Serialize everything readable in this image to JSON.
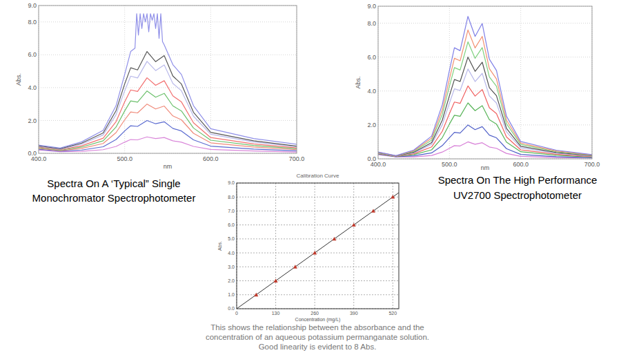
{
  "chart_data": [
    {
      "type": "line",
      "caption": [
        "Spectra On A ‘Typical” Single",
        "Monochromator Spectrophotometer"
      ],
      "x_label": "nm",
      "y_label": "Abs.",
      "xlim": [
        400,
        700
      ],
      "ylim": [
        0,
        9
      ],
      "xticks": [
        {
          "value": 400,
          "label": "400.0"
        },
        {
          "value": 500,
          "label": "500.0"
        },
        {
          "value": 600,
          "label": "600.0"
        },
        {
          "value": 700,
          "label": "700.0"
        }
      ],
      "yticks": [
        {
          "value": 0,
          "label": "0.0"
        },
        {
          "value": 2,
          "label": "2.0"
        },
        {
          "value": 4,
          "label": "4.0"
        },
        {
          "value": 6,
          "label": "6.0"
        },
        {
          "value": 8,
          "label": "8.0"
        },
        {
          "value": 9,
          "label": "9.0"
        }
      ],
      "grid": true,
      "line_style": "solid",
      "x": [
        400,
        425,
        450,
        475,
        490,
        500,
        507,
        515,
        526,
        536,
        546,
        556,
        566,
        580,
        600,
        650,
        700
      ],
      "series": [
        {
          "color": "#d986d9",
          "values": [
            0.2,
            0.1,
            0.12,
            0.22,
            0.42,
            0.68,
            0.84,
            0.82,
            1.0,
            0.9,
            0.96,
            0.76,
            0.68,
            0.42,
            0.24,
            0.14,
            0.08
          ]
        },
        {
          "color": "#5b6bd0",
          "values": [
            0.25,
            0.13,
            0.2,
            0.4,
            0.84,
            1.36,
            1.68,
            1.64,
            2.0,
            1.8,
            1.92,
            1.52,
            1.36,
            0.82,
            0.44,
            0.26,
            0.15
          ]
        },
        {
          "color": "#f08a7a",
          "values": [
            0.3,
            0.16,
            0.3,
            0.6,
            1.26,
            2.04,
            2.52,
            2.46,
            3.0,
            2.7,
            2.88,
            2.28,
            2.04,
            1.22,
            0.64,
            0.38,
            0.22
          ]
        },
        {
          "color": "#6cc06c",
          "values": [
            0.34,
            0.19,
            0.38,
            0.76,
            1.6,
            2.58,
            3.19,
            3.12,
            3.8,
            3.42,
            3.65,
            2.89,
            2.58,
            1.54,
            0.8,
            0.48,
            0.28
          ]
        },
        {
          "color": "#f27070",
          "values": [
            0.38,
            0.22,
            0.46,
            0.92,
            1.93,
            3.13,
            3.86,
            3.77,
            4.6,
            4.14,
            4.42,
            3.5,
            3.13,
            1.86,
            0.96,
            0.57,
            0.33
          ]
        },
        {
          "color": "#b9b9ea",
          "values": [
            0.42,
            0.25,
            0.56,
            1.12,
            2.35,
            3.81,
            4.7,
            4.59,
            5.6,
            5.04,
            5.38,
            4.26,
            3.81,
            2.26,
            1.16,
            0.69,
            0.4
          ]
        },
        {
          "color": "#555555",
          "values": [
            0.46,
            0.28,
            0.62,
            1.24,
            2.6,
            4.22,
            5.21,
            5.08,
            6.2,
            5.58,
            5.95,
            4.71,
            4.22,
            2.5,
            1.28,
            0.76,
            0.44
          ]
        },
        {
          "color": "#8f8fe8",
          "x": [
            400,
            425,
            450,
            475,
            490,
            500,
            507,
            512,
            514,
            516,
            518,
            520,
            522,
            524,
            526,
            528,
            530,
            532,
            534,
            536,
            538,
            540,
            542,
            544,
            546,
            556,
            566,
            580,
            600,
            650,
            700
          ],
          "values": [
            0.5,
            0.32,
            0.7,
            1.4,
            2.9,
            4.8,
            6.2,
            6.4,
            8.5,
            7.2,
            8.5,
            7.6,
            8.5,
            8.0,
            8.5,
            7.4,
            8.5,
            8.1,
            8.5,
            7.6,
            8.5,
            7.0,
            8.5,
            6.8,
            6.6,
            5.4,
            4.8,
            2.9,
            1.5,
            0.9,
            0.55
          ]
        }
      ]
    },
    {
      "type": "line",
      "caption": [
        "Spectra On The High Performance",
        "UV2700 Spectrophotometer"
      ],
      "x_label": "nm",
      "y_label": "Abs.",
      "xlim": [
        400,
        700
      ],
      "ylim": [
        0,
        9
      ],
      "xticks": [
        {
          "value": 400,
          "label": "400.0"
        },
        {
          "value": 500,
          "label": "500.0"
        },
        {
          "value": 600,
          "label": "600.0"
        },
        {
          "value": 700,
          "label": "700.0"
        }
      ],
      "yticks": [
        {
          "value": 0,
          "label": "0.0"
        },
        {
          "value": 2,
          "label": "2.0"
        },
        {
          "value": 4,
          "label": "4.0"
        },
        {
          "value": 6,
          "label": "6.0"
        },
        {
          "value": 8,
          "label": "8.0"
        },
        {
          "value": 9,
          "label": "9.0"
        }
      ],
      "grid": true,
      "line_style": "solid",
      "x": [
        400,
        425,
        450,
        475,
        490,
        500,
        507,
        515,
        526,
        536,
        546,
        556,
        566,
        580,
        600,
        650,
        700
      ],
      "series": [
        {
          "color": "#d77fd7",
          "values": [
            0.25,
            0.12,
            0.12,
            0.2,
            0.4,
            0.62,
            0.78,
            0.76,
            1.0,
            0.86,
            0.95,
            0.7,
            0.62,
            0.32,
            0.15,
            0.08,
            0.05
          ]
        },
        {
          "color": "#4f5fc8",
          "values": [
            0.28,
            0.13,
            0.18,
            0.35,
            0.78,
            1.25,
            1.56,
            1.52,
            2.0,
            1.72,
            1.9,
            1.4,
            1.24,
            0.6,
            0.26,
            0.13,
            0.07
          ]
        },
        {
          "color": "#58b458",
          "values": [
            0.3,
            0.14,
            0.25,
            0.53,
            1.25,
            2.05,
            2.57,
            2.51,
            3.3,
            2.84,
            3.14,
            2.31,
            2.05,
            0.99,
            0.42,
            0.21,
            0.11
          ]
        },
        {
          "color": "#f06060",
          "values": [
            0.32,
            0.15,
            0.3,
            0.7,
            1.63,
            2.67,
            3.35,
            3.27,
            4.3,
            3.7,
            4.09,
            3.01,
            2.67,
            1.29,
            0.53,
            0.27,
            0.13
          ]
        },
        {
          "color": "#b7b7ea",
          "values": [
            0.34,
            0.16,
            0.35,
            0.86,
            2.01,
            3.29,
            4.13,
            4.03,
            5.3,
            4.56,
            5.04,
            3.71,
            3.29,
            1.59,
            0.65,
            0.33,
            0.16
          ]
        },
        {
          "color": "#505050",
          "values": [
            0.36,
            0.17,
            0.39,
            0.96,
            2.28,
            3.72,
            4.68,
            4.56,
            6.0,
            5.16,
            5.7,
            4.2,
            3.72,
            1.8,
            0.74,
            0.37,
            0.19
          ]
        },
        {
          "color": "#7ed07e",
          "values": [
            0.37,
            0.18,
            0.44,
            1.1,
            2.62,
            4.28,
            5.38,
            5.24,
            6.9,
            5.93,
            6.56,
            4.83,
            4.28,
            2.07,
            0.85,
            0.42,
            0.21
          ]
        },
        {
          "color": "#f29070",
          "values": [
            0.39,
            0.18,
            0.48,
            1.22,
            2.89,
            4.71,
            5.93,
            5.78,
            7.6,
            6.54,
            7.22,
            5.32,
            4.71,
            2.28,
            0.93,
            0.46,
            0.23
          ]
        },
        {
          "color": "#7f7fe6",
          "values": [
            0.4,
            0.19,
            0.52,
            1.34,
            3.19,
            5.21,
            6.55,
            6.38,
            8.4,
            7.22,
            7.98,
            5.88,
            5.21,
            2.52,
            1.02,
            0.51,
            0.25
          ]
        }
      ]
    },
    {
      "type": "scatter",
      "title": "Calibration Curve",
      "caption": [
        "This shows the relationship between the absorbance and the",
        "concentration of an aqueous potassium permanganate solution.",
        "Good linearity is evident to 8 Abs."
      ],
      "x_label": "Concentration (mg/L)",
      "y_label": "Abs.",
      "xlim": [
        0,
        540
      ],
      "ylim": [
        0,
        9
      ],
      "xticks": [
        0,
        130,
        260,
        390,
        520
      ],
      "yticks": [
        {
          "value": 0,
          "label": "0.0"
        },
        {
          "value": 1,
          "label": "1.0"
        },
        {
          "value": 2,
          "label": "2.0"
        },
        {
          "value": 3,
          "label": "3.0"
        },
        {
          "value": 4,
          "label": "4.0"
        },
        {
          "value": 5,
          "label": "5.0"
        },
        {
          "value": 6,
          "label": "6.0"
        },
        {
          "value": 7,
          "label": "7.0"
        },
        {
          "value": 8,
          "label": "8.0"
        },
        {
          "value": 9,
          "label": "9.0"
        }
      ],
      "grid": true,
      "x": [
        65,
        130,
        195,
        260,
        325,
        390,
        455,
        520
      ],
      "series": [
        {
          "type": "line",
          "color": "#333333",
          "line_style": "solid",
          "x": [
            0,
            540
          ],
          "values": [
            0,
            8.31
          ]
        },
        {
          "type": "scatter",
          "color": "#c0392b",
          "marker": "triangle",
          "values": [
            1,
            2,
            3,
            4,
            5,
            6,
            7,
            8
          ]
        }
      ]
    }
  ]
}
